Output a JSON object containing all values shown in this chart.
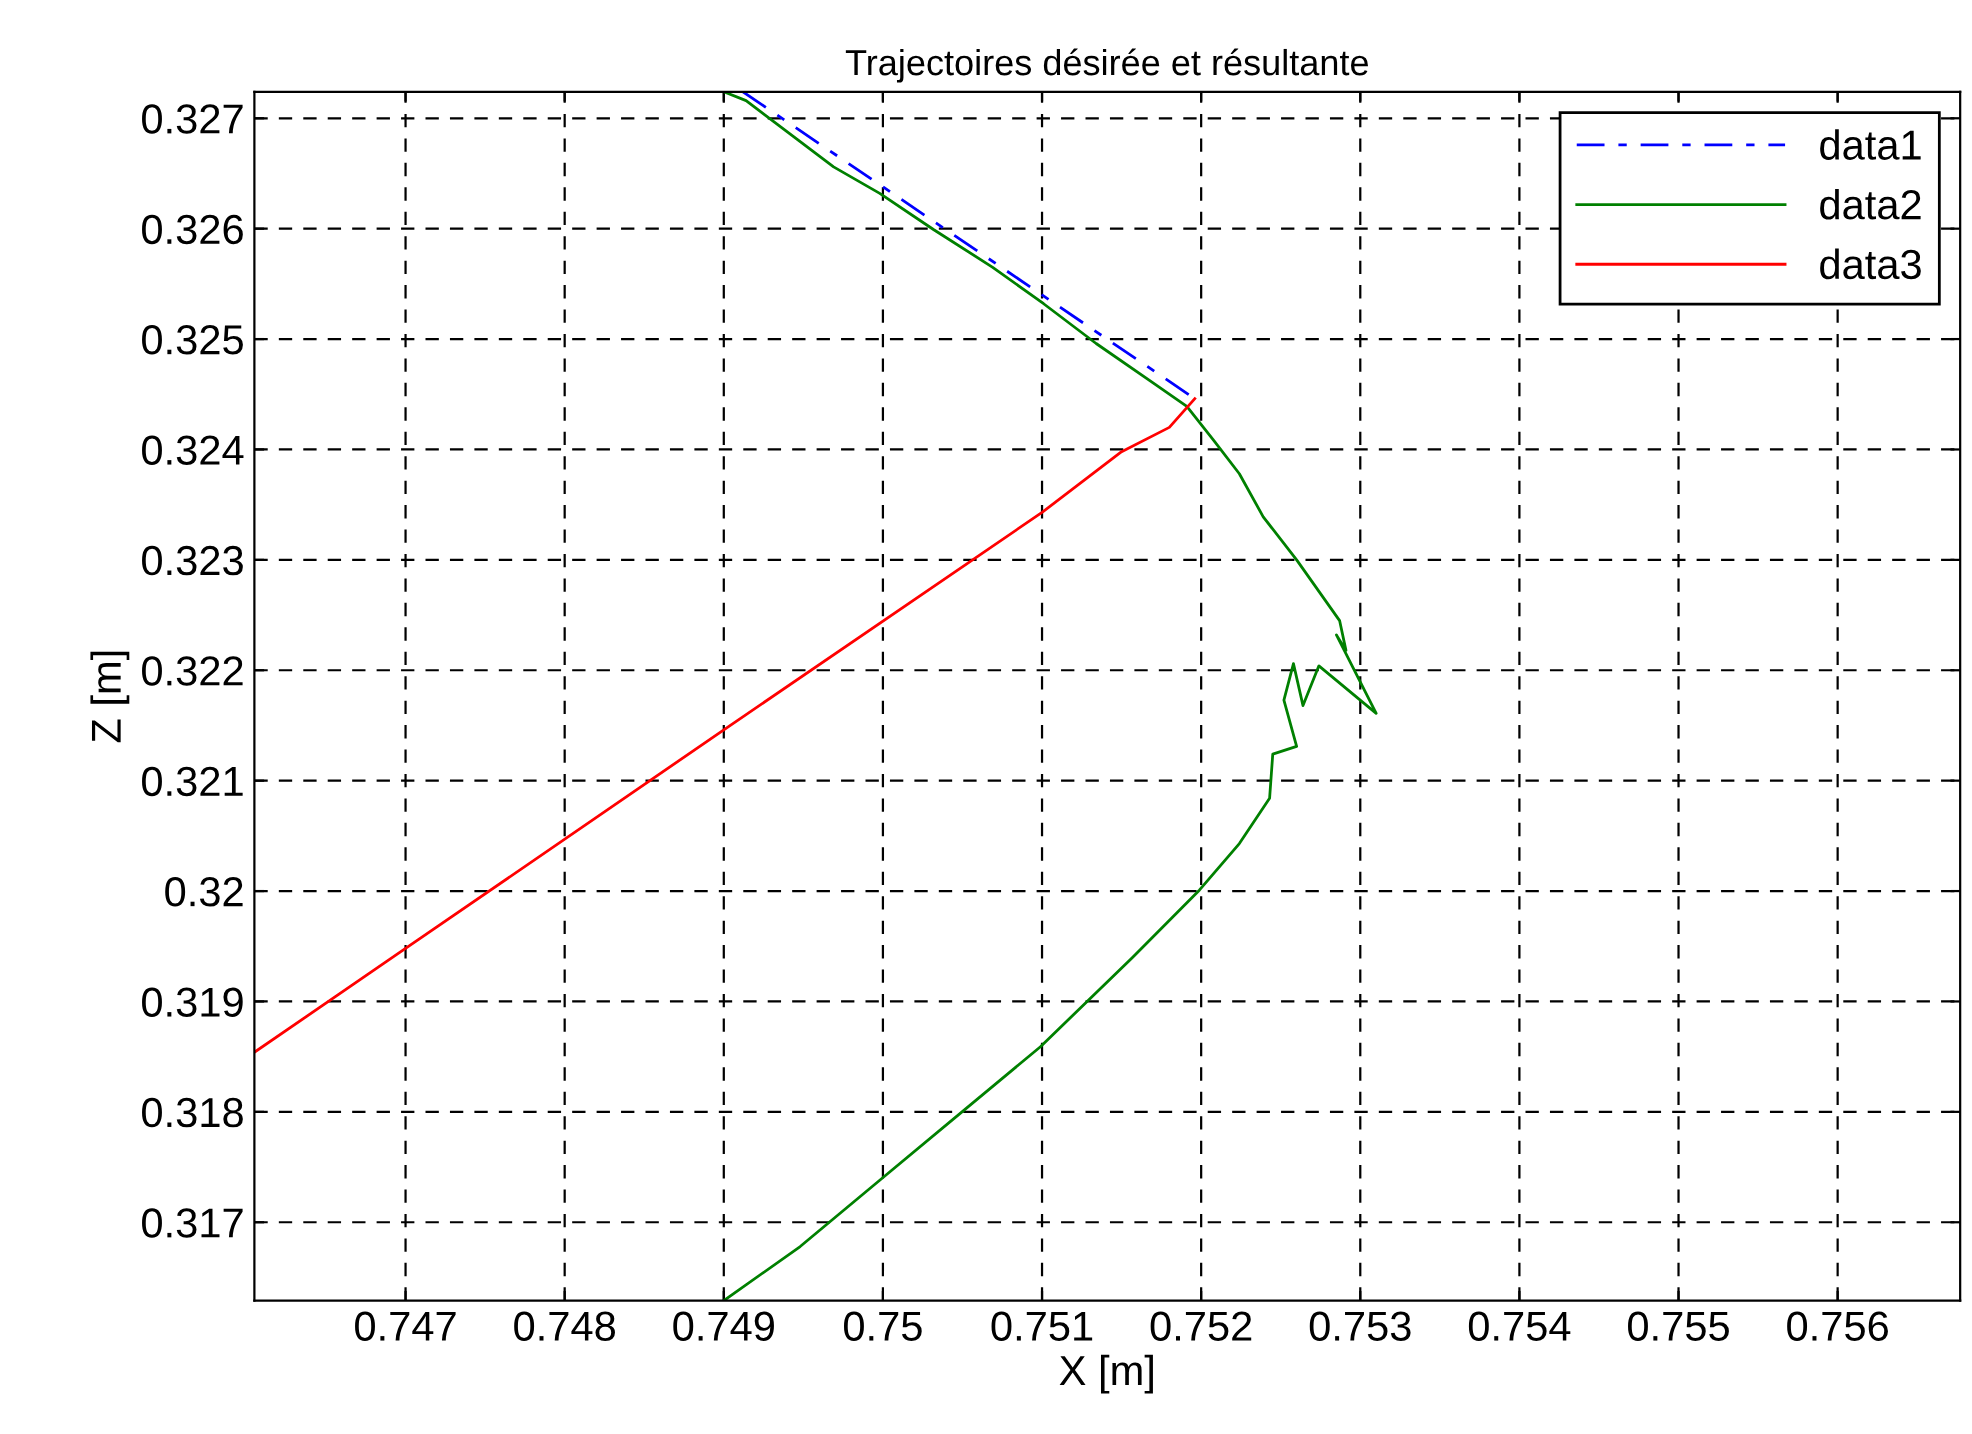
{
  "chart_data": {
    "type": "line",
    "title": "Trajectoires désirée et résultante",
    "xlabel": "X [m]",
    "ylabel": "Z [m]",
    "xlim": [
      0.74605,
      0.75677
    ],
    "ylim": [
      0.31629,
      0.32724
    ],
    "xticks": [
      0.747,
      0.748,
      0.749,
      0.75,
      0.751,
      0.752,
      0.753,
      0.754,
      0.755,
      0.756
    ],
    "yticks": [
      0.317,
      0.318,
      0.319,
      0.32,
      0.321,
      0.322,
      0.323,
      0.324,
      0.325,
      0.326,
      0.327
    ],
    "grid": true,
    "legend": "top right",
    "series": [
      {
        "name": "data1",
        "color": "#0000ff",
        "line_style": "dashed",
        "x": [
          0.74912,
          0.75196
        ],
        "values": [
          0.32724,
          0.32446
        ]
      },
      {
        "name": "data2",
        "color": "#008000",
        "line_style": "solid",
        "x": [
          0.749,
          0.74914,
          0.74969,
          0.74998,
          0.75032,
          0.75069,
          0.75101,
          0.75134,
          0.7517,
          0.75191,
          0.75208,
          0.75224,
          0.75239,
          0.7526,
          0.75287,
          0.75291,
          0.75285,
          0.7531,
          0.75274,
          0.75264,
          0.75258,
          0.75252,
          0.7526,
          0.75245,
          0.75243,
          0.75224,
          0.75199,
          0.75157,
          0.75099,
          0.75048,
          0.74998,
          0.74948,
          0.749
        ],
        "values": [
          0.32724,
          0.32716,
          0.32656,
          0.32632,
          0.32599,
          0.32565,
          0.32532,
          0.32496,
          0.3246,
          0.32439,
          0.32408,
          0.32378,
          0.32339,
          0.323,
          0.32245,
          0.32218,
          0.32232,
          0.32161,
          0.32204,
          0.32168,
          0.32206,
          0.32173,
          0.32131,
          0.32124,
          0.32084,
          0.32043,
          0.32001,
          0.3194,
          0.31859,
          0.31798,
          0.31738,
          0.31678,
          0.31629
        ]
      },
      {
        "name": "data3",
        "color": "#ff0000",
        "line_style": "solid",
        "x": [
          0.74605,
          0.747,
          0.749,
          0.751,
          0.7515,
          0.7518,
          0.75196
        ],
        "values": [
          0.31854,
          0.31948,
          0.32146,
          0.32343,
          0.32398,
          0.3242,
          0.32446
        ]
      }
    ]
  }
}
